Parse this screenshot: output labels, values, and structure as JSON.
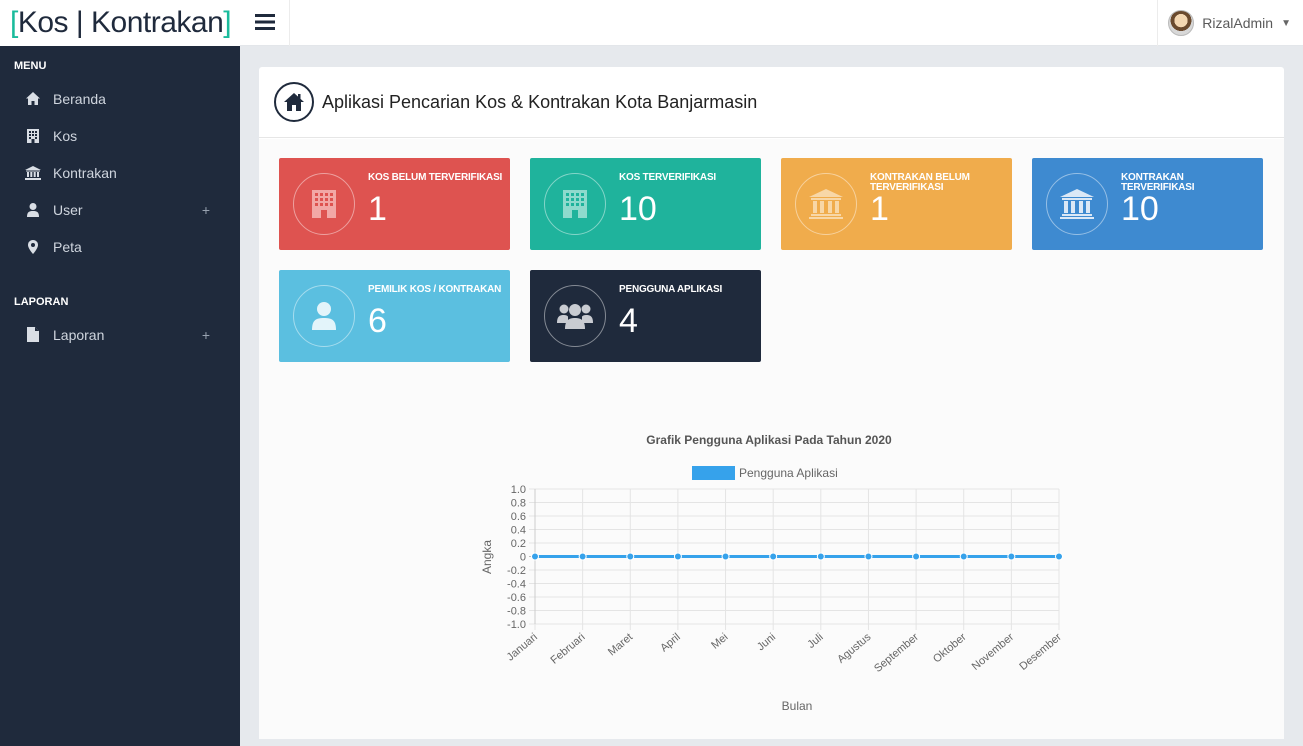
{
  "brand": {
    "open": "[",
    "name": "Kos | Kontrakan",
    "close": "]"
  },
  "topbar": {
    "user_name": "RizalAdmin"
  },
  "sidebar": {
    "sections": [
      {
        "title": "MENU"
      },
      {
        "title": "LAPORAN"
      }
    ],
    "items": [
      {
        "label": "Beranda",
        "icon": "home-icon"
      },
      {
        "label": "Kos",
        "icon": "building-icon"
      },
      {
        "label": "Kontrakan",
        "icon": "bank-icon"
      },
      {
        "label": "User",
        "icon": "user-icon",
        "expand": "+"
      },
      {
        "label": "Peta",
        "icon": "map-marker-icon"
      },
      {
        "label": "Laporan",
        "icon": "file-icon",
        "expand": "+"
      }
    ]
  },
  "page": {
    "title": "Aplikasi Pencarian Kos & Kontrakan Kota Banjarmasin"
  },
  "cards": [
    {
      "label": "KOS BELUM TERVERIFIKASI",
      "value": "1",
      "color": "#de5350",
      "icon": "building-icon"
    },
    {
      "label": "KOS TERVERIFIKASI",
      "value": "10",
      "color": "#1fb39c",
      "icon": "building-icon"
    },
    {
      "label": "KONTRAKAN BELUM TERVERIFIKASI",
      "value": "1",
      "color": "#f0ac4c",
      "icon": "bank-icon"
    },
    {
      "label": "KONTRAKAN TERVERIFIKASI",
      "value": "10",
      "color": "#3e8ad0",
      "icon": "bank-icon"
    },
    {
      "label": "PEMILIK KOS / KONTRAKAN",
      "value": "6",
      "color": "#5bbfe0",
      "icon": "user-icon"
    },
    {
      "label": "PENGGUNA APLIKASI",
      "value": "4",
      "color": "#1f2a3c",
      "icon": "users-icon"
    }
  ],
  "chart_data": {
    "type": "line",
    "title": "Grafik Pengguna Aplikasi Pada Tahun 2020",
    "xlabel": "Bulan",
    "ylabel": "Angka",
    "categories": [
      "Januari",
      "Februari",
      "Maret",
      "April",
      "Mei",
      "Juni",
      "Juli",
      "Agustus",
      "September",
      "Oktober",
      "November",
      "Desember"
    ],
    "series": [
      {
        "name": "Pengguna Aplikasi",
        "color": "#36a2eb",
        "values": [
          0,
          0,
          0,
          0,
          0,
          0,
          0,
          0,
          0,
          0,
          0,
          0
        ]
      }
    ],
    "ylim": [
      -1.0,
      1.0
    ],
    "yticks": [
      "1.0",
      "0.8",
      "0.6",
      "0.4",
      "0.2",
      "0",
      "-0.2",
      "-0.4",
      "-0.6",
      "-0.8",
      "-1.0"
    ],
    "grid": true,
    "legend": "top"
  }
}
